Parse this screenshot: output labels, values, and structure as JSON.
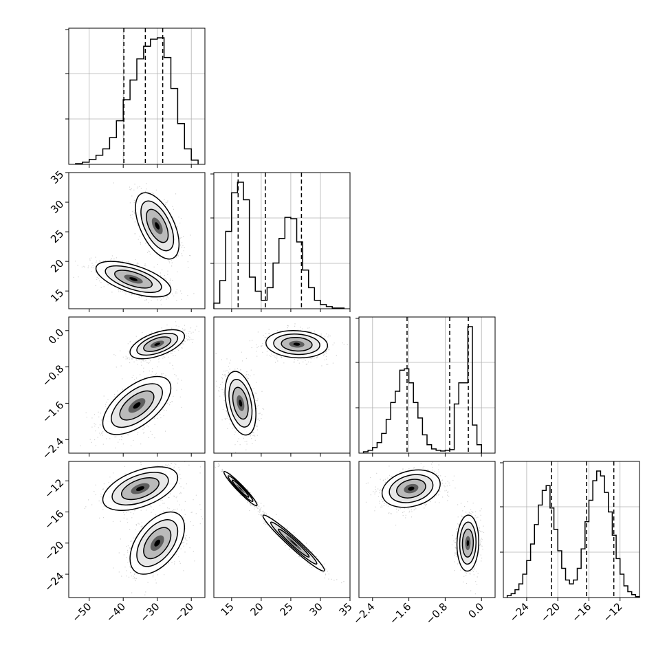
{
  "chart_data": {
    "type": "corner",
    "description_note": "",
    "parameters": [
      {
        "index": 0,
        "range": [
          -56,
          -16
        ],
        "ticks": [
          "−50",
          "−40",
          "−30",
          "−20"
        ],
        "tick_values": [
          -50,
          -40,
          -30,
          -20
        ],
        "quantiles": [
          -39.8,
          -33.5,
          -28.4
        ],
        "hist": {
          "bin_edges": [
            -54,
            -52,
            -50,
            -48,
            -46,
            -44,
            -42,
            -40,
            -38,
            -36,
            -34,
            -32,
            -30,
            -28,
            -26,
            -24,
            -22,
            -20,
            -18
          ],
          "counts": [
            1,
            3,
            7,
            13,
            22,
            38,
            62,
            92,
            120,
            150,
            168,
            178,
            180,
            152,
            108,
            58,
            22,
            6
          ]
        }
      },
      {
        "index": 1,
        "range": [
          12,
          35
        ],
        "ticks": [
          "15",
          "20",
          "25",
          "30",
          "35"
        ],
        "tick_values": [
          15,
          20,
          25,
          30,
          35
        ],
        "quantiles": [
          16.1,
          20.7,
          26.8
        ],
        "hist": {
          "bin_edges": [
            12,
            13,
            14,
            15,
            16,
            17,
            18,
            19,
            20,
            21,
            22,
            23,
            24,
            25,
            26,
            27,
            28,
            29,
            30,
            31,
            32,
            33,
            34
          ],
          "counts": [
            8,
            40,
            110,
            165,
            180,
            155,
            45,
            25,
            12,
            30,
            65,
            100,
            130,
            128,
            95,
            55,
            30,
            12,
            6,
            3,
            1,
            1
          ]
        }
      },
      {
        "index": 2,
        "range": [
          -2.7,
          0.3
        ],
        "ticks": [
          "−2.4",
          "−1.6",
          "−0.8",
          "0.0"
        ],
        "tick_values": [
          -2.4,
          -1.6,
          -0.8,
          0.0
        ],
        "quantiles": [
          -1.64,
          -0.7,
          -0.29
        ],
        "hist": {
          "bin_edges": [
            -2.6,
            -2.5,
            -2.4,
            -2.3,
            -2.2,
            -2.1,
            -2.0,
            -1.9,
            -1.8,
            -1.7,
            -1.6,
            -1.5,
            -1.4,
            -1.3,
            -1.2,
            -1.1,
            -1.0,
            -0.9,
            -0.8,
            -0.7,
            -0.6,
            -0.5,
            -0.4,
            -0.3,
            -0.2,
            -0.1,
            0.0
          ],
          "counts": [
            2,
            4,
            8,
            15,
            28,
            48,
            72,
            88,
            118,
            120,
            100,
            72,
            50,
            26,
            12,
            6,
            4,
            3,
            4,
            5,
            70,
            100,
            100,
            180,
            40,
            12
          ]
        }
      },
      {
        "index": 3,
        "range": [
          -27,
          -9.5
        ],
        "ticks": [
          "−24",
          "−20",
          "−16",
          "−12"
        ],
        "tick_values": [
          -24,
          -20,
          -16,
          -12
        ],
        "quantiles": [
          -20.8,
          -16.3,
          -12.8
        ],
        "hist": {
          "bin_edges": [
            -26.5,
            -26,
            -25.5,
            -25,
            -24.5,
            -24,
            -23.5,
            -23,
            -22.5,
            -22,
            -21.5,
            -21,
            -20.5,
            -20,
            -19.5,
            -19,
            -18.5,
            -18,
            -17.5,
            -17,
            -16.5,
            -16,
            -15.5,
            -15,
            -14.5,
            -14,
            -13.5,
            -13,
            -12.5,
            -12,
            -11.5,
            -11,
            -10.5,
            -10,
            -9.5
          ],
          "counts": [
            2,
            4,
            8,
            14,
            24,
            38,
            55,
            75,
            95,
            110,
            115,
            92,
            70,
            48,
            30,
            18,
            14,
            18,
            30,
            50,
            78,
            100,
            120,
            130,
            125,
            108,
            88,
            64,
            40,
            24,
            12,
            6,
            3,
            1
          ]
        }
      }
    ],
    "scatter_panels": [
      {
        "x_param": 0,
        "y_param": 1,
        "modes": [
          {
            "mean": [
              -30,
              26
            ],
            "sd": [
              3.2,
              2.8
            ],
            "rho": -0.55,
            "n": 900
          },
          {
            "mean": [
              -37,
              17
            ],
            "sd": [
              5.5,
              1.5
            ],
            "rho": -0.6,
            "n": 900
          }
        ]
      },
      {
        "x_param": 0,
        "y_param": 2,
        "modes": [
          {
            "mean": [
              -30,
              -0.3
            ],
            "sd": [
              4.0,
              0.16
            ],
            "rho": 0.55,
            "n": 900
          },
          {
            "mean": [
              -36,
              -1.65
            ],
            "sd": [
              5.0,
              0.32
            ],
            "rho": 0.6,
            "n": 900
          }
        ]
      },
      {
        "x_param": 1,
        "y_param": 2,
        "modes": [
          {
            "mean": [
              26,
              -0.3
            ],
            "sd": [
              2.6,
              0.15
            ],
            "rho": -0.1,
            "n": 900
          },
          {
            "mean": [
              16.5,
              -1.6
            ],
            "sd": [
              1.3,
              0.35
            ],
            "rho": -0.35,
            "n": 900
          }
        ]
      },
      {
        "x_param": 0,
        "y_param": 3,
        "modes": [
          {
            "mean": [
              -35,
              -13
            ],
            "sd": [
              5.5,
              1.4
            ],
            "rho": 0.5,
            "n": 900
          },
          {
            "mean": [
              -30,
              -20
            ],
            "sd": [
              4.0,
              2.0
            ],
            "rho": 0.5,
            "n": 900
          }
        ]
      },
      {
        "x_param": 1,
        "y_param": 3,
        "modes": [
          {
            "mean": [
              16.5,
              -13
            ],
            "sd": [
              1.4,
              1.1
            ],
            "rho": -0.96,
            "n": 900
          },
          {
            "mean": [
              25.5,
              -20
            ],
            "sd": [
              2.6,
              1.8
            ],
            "rho": -0.97,
            "n": 900
          }
        ]
      },
      {
        "x_param": 2,
        "y_param": 3,
        "modes": [
          {
            "mean": [
              -1.55,
              -13
            ],
            "sd": [
              0.32,
              1.2
            ],
            "rho": 0.25,
            "n": 900
          },
          {
            "mean": [
              -0.3,
              -20
            ],
            "sd": [
              0.12,
              1.8
            ],
            "rho": 0.05,
            "n": 900
          }
        ]
      }
    ],
    "style": {
      "line_color": "#000000",
      "point_color": "#7f7f7f",
      "grid": true,
      "quantile_line_style": "dashed"
    }
  }
}
